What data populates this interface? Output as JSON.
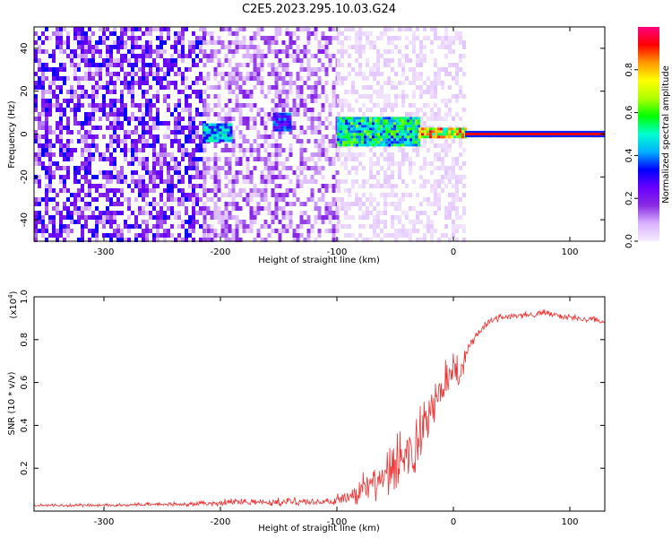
{
  "title": "C2E5.2023.295.10.03.G24",
  "chart_data": [
    {
      "type": "heatmap",
      "xlabel": "Height of straight line (km)",
      "ylabel": "Frequency (Hz)",
      "xlim": [
        -360,
        130
      ],
      "ylim": [
        -50,
        50
      ],
      "x_ticks": [
        -300,
        -200,
        -100,
        0,
        100
      ],
      "y_ticks": [
        -40,
        -20,
        0,
        20,
        40
      ],
      "colorbar": {
        "label": "Normalized spectral amplitude",
        "range": [
          0,
          1
        ],
        "ticks": [
          "0.0",
          "0.2",
          "0.4",
          "0.6",
          "0.8"
        ],
        "tick_values": [
          0.0,
          0.2,
          0.4,
          0.6,
          0.8
        ],
        "colors": [
          "#f6ecff",
          "#d9b3ff",
          "#8a2be2",
          "#6a00ff",
          "#0000ff",
          "#00b0ff",
          "#00ffd0",
          "#00ff00",
          "#b0ff00",
          "#ffff00",
          "#ff9900",
          "#ff0000",
          "#ff0080"
        ]
      },
      "grid": false,
      "regions": [
        {
          "x": [
            -360,
            -215
          ],
          "freq": [
            -50,
            50
          ],
          "amplitude": 0.18,
          "description_note": ""
        },
        {
          "x": [
            -215,
            -100
          ],
          "freq": [
            -50,
            50
          ],
          "amplitude": 0.1
        },
        {
          "x": [
            -100,
            10
          ],
          "freq": [
            -50,
            50
          ],
          "amplitude": 0.03
        }
      ],
      "features": [
        {
          "x": [
            -215,
            -190
          ],
          "freq": [
            -3,
            5
          ],
          "amplitude": 0.45
        },
        {
          "x": [
            -155,
            -140
          ],
          "freq": [
            2,
            10
          ],
          "amplitude": 0.35
        },
        {
          "x": [
            -100,
            -30
          ],
          "freq": [
            -5,
            8
          ],
          "amplitude": 0.55
        },
        {
          "x": [
            -30,
            10
          ],
          "freq": [
            -1,
            3
          ],
          "amplitude": 0.8
        },
        {
          "x": [
            10,
            130
          ],
          "freq": [
            -1,
            1
          ],
          "amplitude": 0.95
        }
      ]
    },
    {
      "type": "line",
      "xlabel": "Height of straight line (km)",
      "ylabel": "SNR (10 * v/v)",
      "y_multiplier": "(x10",
      "y_multiplier_exp": "4",
      "y_multiplier_close": ")",
      "xlim": [
        -360,
        130
      ],
      "ylim": [
        0,
        1.0
      ],
      "x_ticks": [
        -300,
        -200,
        -100,
        0,
        100
      ],
      "y_ticks": [
        "0.2",
        "0.4",
        "0.6",
        "0.8",
        "1.0"
      ],
      "y_tick_values": [
        0.2,
        0.4,
        0.6,
        0.8,
        1.0
      ],
      "series": [
        {
          "color": "#ee3333",
          "x": [
            -360,
            -300,
            -250,
            -220,
            -200,
            -180,
            -160,
            -140,
            -120,
            -110,
            -100,
            -90,
            -80,
            -70,
            -60,
            -50,
            -45,
            -40,
            -35,
            -30,
            -25,
            -20,
            -15,
            -10,
            -5,
            0,
            5,
            10,
            15,
            20,
            30,
            40,
            60,
            80,
            100,
            120,
            130
          ],
          "y": [
            0.025,
            0.025,
            0.03,
            0.03,
            0.035,
            0.04,
            0.035,
            0.04,
            0.04,
            0.04,
            0.045,
            0.06,
            0.08,
            0.1,
            0.12,
            0.15,
            0.2,
            0.25,
            0.22,
            0.3,
            0.35,
            0.42,
            0.5,
            0.55,
            0.6,
            0.65,
            0.62,
            0.7,
            0.78,
            0.82,
            0.88,
            0.9,
            0.91,
            0.92,
            0.9,
            0.89,
            0.88
          ],
          "noise": [
            0.012,
            0.012,
            0.015,
            0.02,
            0.03,
            0.03,
            0.03,
            0.04,
            0.03,
            0.03,
            0.05,
            0.08,
            0.12,
            0.15,
            0.18,
            0.25,
            0.3,
            0.35,
            0.3,
            0.3,
            0.3,
            0.2,
            0.2,
            0.18,
            0.15,
            0.15,
            0.15,
            0.08,
            0.05,
            0.04,
            0.03,
            0.03,
            0.03,
            0.03,
            0.03,
            0.03,
            0.03
          ]
        }
      ]
    }
  ]
}
